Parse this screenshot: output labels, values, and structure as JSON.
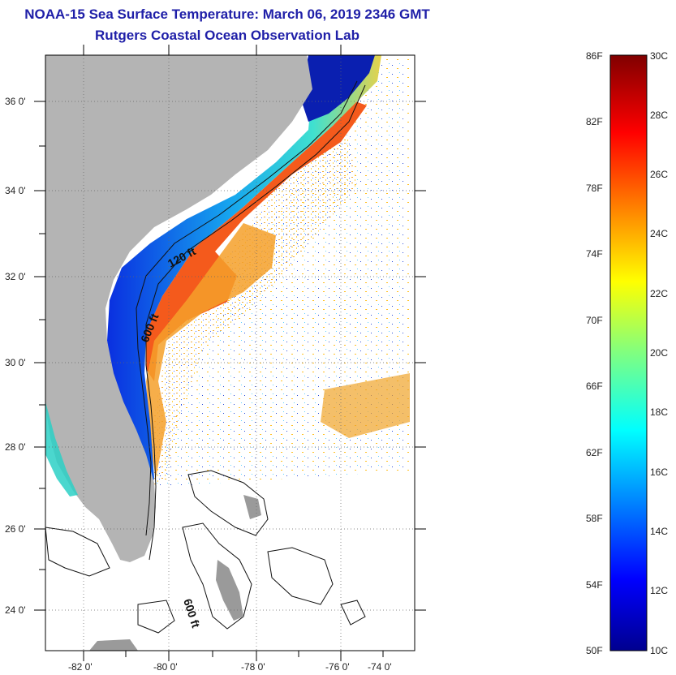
{
  "header": {
    "title": "NOAA-15 Sea Surface Temperature:  March 06, 2019 2346 GMT",
    "subtitle": "Rutgers Coastal Ocean Observation Lab"
  },
  "map": {
    "lon_range": [
      -83,
      -73
    ],
    "lat_range": [
      23,
      37
    ],
    "lat_ticks": [
      "36 0'",
      "34 0'",
      "32 0'",
      "30 0'",
      "28 0'",
      "26 0'",
      "24 0'"
    ],
    "lon_ticks": [
      "-82 0'",
      "-80 0'",
      "-78 0'",
      "-76 0'",
      "-74 0'"
    ],
    "contour_labels": [
      "120 ft",
      "600 ft",
      "600 ft"
    ],
    "land_color": "#b4b4b4"
  },
  "colorbar": {
    "fahrenheit_labels": [
      "86F",
      "82F",
      "78F",
      "74F",
      "70F",
      "66F",
      "62F",
      "58F",
      "54F",
      "50F"
    ],
    "celsius_labels": [
      "30C",
      "28C",
      "26C",
      "24C",
      "22C",
      "20C",
      "18C",
      "16C",
      "14C",
      "12C",
      "10C"
    ],
    "scale": "jet",
    "range_F": [
      50,
      86
    ],
    "range_C": [
      10,
      30
    ]
  }
}
